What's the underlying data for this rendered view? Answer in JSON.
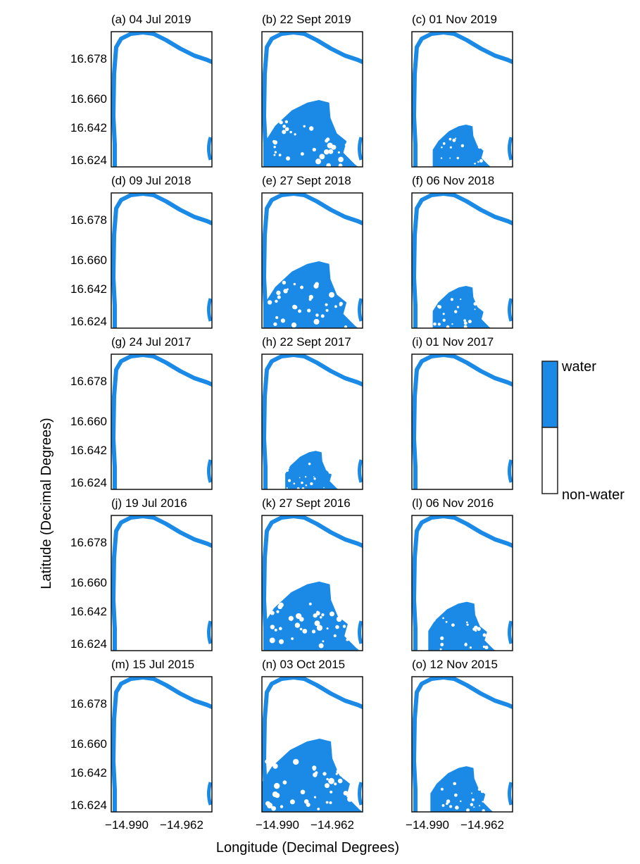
{
  "figure": {
    "y_axis_label": "Latitude (Decimal Degrees)",
    "x_axis_label": "Longitude (Decimal Degrees)",
    "lat_ticks": [
      "16.678",
      "16.660",
      "16.642",
      "16.624"
    ],
    "lon_ticks": [
      "−14.990",
      "−14.962"
    ]
  },
  "legend": {
    "water_label": "water",
    "nonwater_label": "non-water",
    "water_color": "#1a8ae6",
    "nonwater_color": "#ffffff"
  },
  "columns": [
    "July",
    "September/October",
    "November"
  ],
  "panels": [
    {
      "title": "(a) 04 Jul 2019",
      "flood_extent": 0
    },
    {
      "title": "(b) 22 Sept 2019",
      "flood_extent": 0.75
    },
    {
      "title": "(c) 01 Nov 2019",
      "flood_extent": 0.3
    },
    {
      "title": "(d) 09 Jul 2018",
      "flood_extent": 0
    },
    {
      "title": "(e) 27 Sept 2018",
      "flood_extent": 0.75
    },
    {
      "title": "(f) 06 Nov 2018",
      "flood_extent": 0.3
    },
    {
      "title": "(g) 24 Jul 2017",
      "flood_extent": 0
    },
    {
      "title": "(h) 22 Sept 2017",
      "flood_extent": 0.25
    },
    {
      "title": "(i) 01 Nov 2017",
      "flood_extent": 0
    },
    {
      "title": "(j) 19 Jul 2016",
      "flood_extent": 0
    },
    {
      "title": "(k) 27 Sept 2016",
      "flood_extent": 0.8
    },
    {
      "title": "(l) 06 Nov 2016",
      "flood_extent": 0.4
    },
    {
      "title": "(m) 15 Jul 2015",
      "flood_extent": 0
    },
    {
      "title": "(n) 03 Oct 2015",
      "flood_extent": 0.9
    },
    {
      "title": "(o) 12 Nov 2015",
      "flood_extent": 0.35
    }
  ]
}
